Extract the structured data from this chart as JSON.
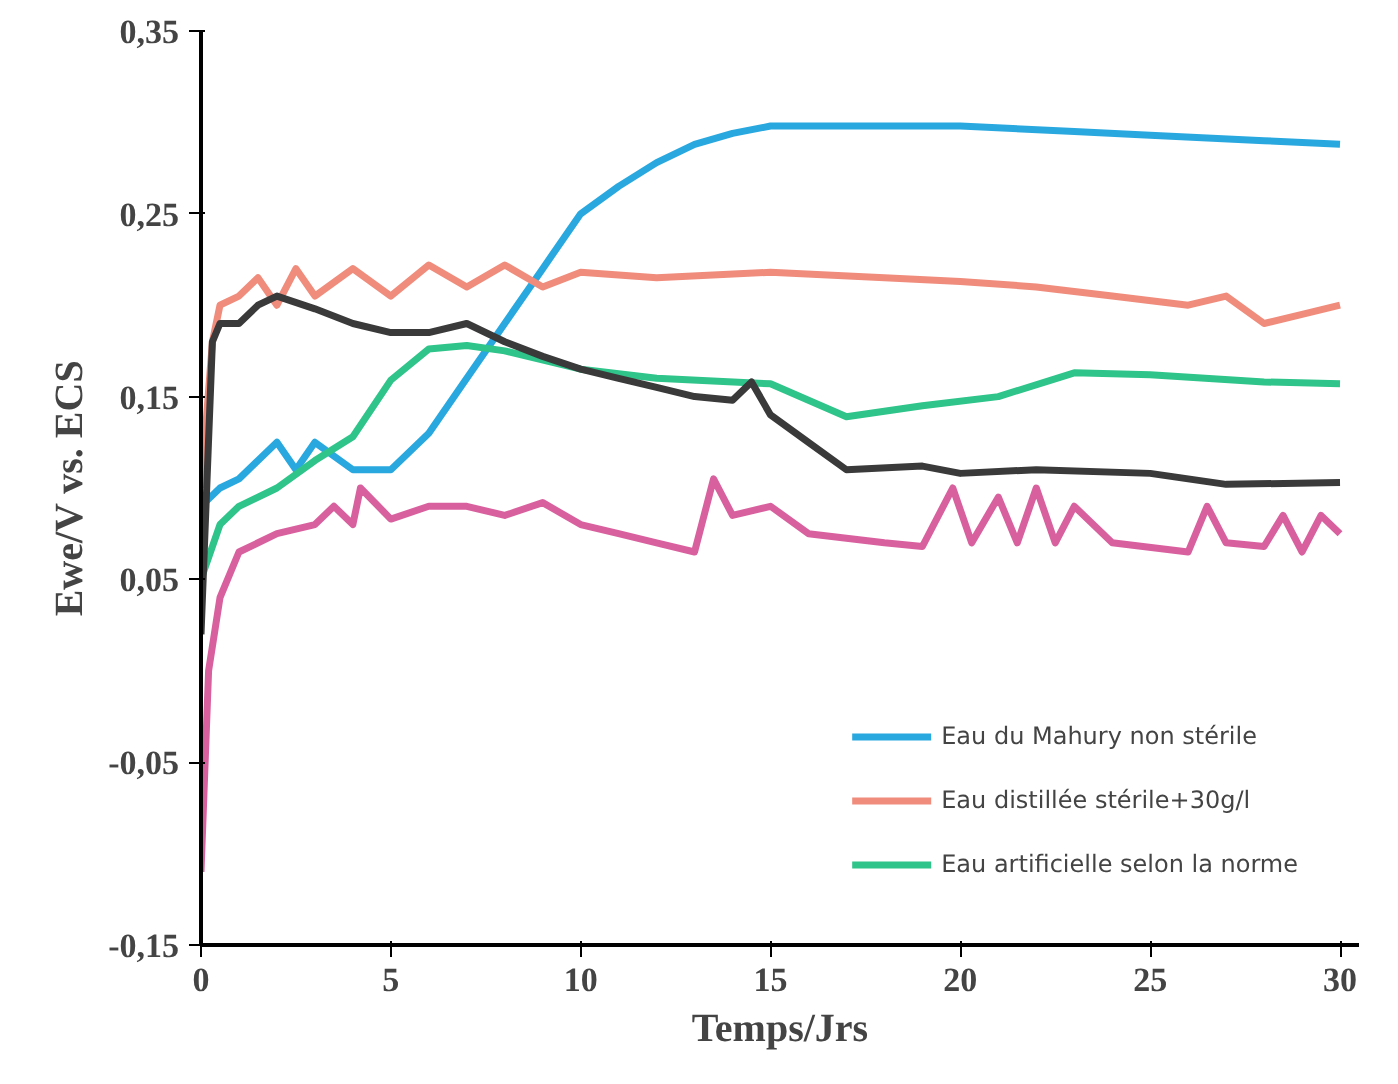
{
  "chart_data": {
    "type": "line",
    "xlabel": "Temps/Jrs",
    "ylabel": "Ewe/V vs. ECS",
    "xlim": [
      0,
      30.5
    ],
    "ylim": [
      -0.15,
      0.35
    ],
    "xticks": [
      0,
      5,
      10,
      15,
      20,
      25,
      30
    ],
    "yticks": [
      {
        "value": -0.15,
        "label": "-0,15"
      },
      {
        "value": -0.05,
        "label": "-0,05"
      },
      {
        "value": 0.05,
        "label": "0,05"
      },
      {
        "value": 0.15,
        "label": "0,15"
      },
      {
        "value": 0.25,
        "label": "0,25"
      },
      {
        "value": 0.35,
        "label": "0,35"
      }
    ],
    "grid": false,
    "legend": "bottom right",
    "marker": "none",
    "line_style": "solid",
    "series": [
      {
        "name": "Eau du Mahury non stérile",
        "color": "#29a8e0",
        "x": [
          0,
          0.5,
          1,
          2,
          2.5,
          3,
          4,
          5,
          6,
          7,
          8,
          9,
          10,
          11,
          12,
          13,
          14,
          15,
          17,
          20,
          23,
          25,
          28,
          30
        ],
        "values": [
          0.09,
          0.1,
          0.105,
          0.125,
          0.11,
          0.125,
          0.11,
          0.11,
          0.13,
          0.16,
          0.19,
          0.22,
          0.25,
          0.265,
          0.278,
          0.288,
          0.294,
          0.298,
          0.298,
          0.298,
          0.295,
          0.293,
          0.29,
          0.288
        ]
      },
      {
        "name": "Eau distillée stérile+30g/l",
        "color": "#f08c7c",
        "x": [
          0,
          0.3,
          0.5,
          1,
          1.5,
          2,
          2.5,
          3,
          4,
          5,
          6,
          7,
          8,
          9,
          10,
          12,
          15,
          18,
          20,
          22,
          24,
          26,
          27,
          28,
          29,
          30
        ],
        "values": [
          0.1,
          0.18,
          0.2,
          0.205,
          0.215,
          0.2,
          0.22,
          0.205,
          0.22,
          0.205,
          0.222,
          0.21,
          0.222,
          0.21,
          0.218,
          0.215,
          0.218,
          0.215,
          0.213,
          0.21,
          0.205,
          0.2,
          0.205,
          0.19,
          0.195,
          0.2
        ]
      },
      {
        "name": "Eau artificielle selon la norme",
        "color": "#2ec48a",
        "x": [
          0,
          0.5,
          1,
          2,
          3,
          4,
          5,
          6,
          7,
          8,
          10,
          12,
          15,
          17,
          19,
          21,
          23,
          25,
          28,
          30
        ],
        "values": [
          0.05,
          0.08,
          0.09,
          0.1,
          0.115,
          0.128,
          0.159,
          0.176,
          0.178,
          0.175,
          0.165,
          0.16,
          0.157,
          0.139,
          0.145,
          0.15,
          0.163,
          0.162,
          0.158,
          0.157
        ]
      },
      {
        "color": "#3a3a3a",
        "x": [
          0,
          0.3,
          0.5,
          1,
          1.5,
          2,
          3,
          4,
          5,
          6,
          7,
          8,
          9,
          10,
          11,
          12,
          13,
          14,
          14.5,
          15,
          16,
          17,
          19,
          20,
          22,
          25,
          27,
          30
        ],
        "values": [
          0.02,
          0.18,
          0.19,
          0.19,
          0.2,
          0.205,
          0.198,
          0.19,
          0.185,
          0.185,
          0.19,
          0.18,
          0.172,
          0.165,
          0.16,
          0.155,
          0.15,
          0.148,
          0.158,
          0.14,
          0.125,
          0.11,
          0.112,
          0.108,
          0.11,
          0.108,
          0.102,
          0.103
        ]
      },
      {
        "color": "#d9609e",
        "x": [
          0,
          0.2,
          0.5,
          1,
          2,
          3,
          3.5,
          4,
          4.2,
          5,
          6,
          7,
          8,
          9,
          10,
          11,
          12,
          13,
          13.5,
          14,
          15,
          16,
          18,
          19,
          19.8,
          20.3,
          21,
          21.5,
          22,
          22.5,
          23,
          24,
          26,
          26.5,
          27,
          28,
          28.5,
          29,
          29.5,
          30
        ],
        "values": [
          -0.11,
          0.0,
          0.04,
          0.065,
          0.075,
          0.08,
          0.09,
          0.08,
          0.1,
          0.083,
          0.09,
          0.09,
          0.085,
          0.092,
          0.08,
          0.075,
          0.07,
          0.065,
          0.105,
          0.085,
          0.09,
          0.075,
          0.07,
          0.068,
          0.1,
          0.07,
          0.095,
          0.07,
          0.1,
          0.07,
          0.09,
          0.07,
          0.065,
          0.09,
          0.07,
          0.068,
          0.085,
          0.065,
          0.085,
          0.075
        ]
      }
    ]
  }
}
